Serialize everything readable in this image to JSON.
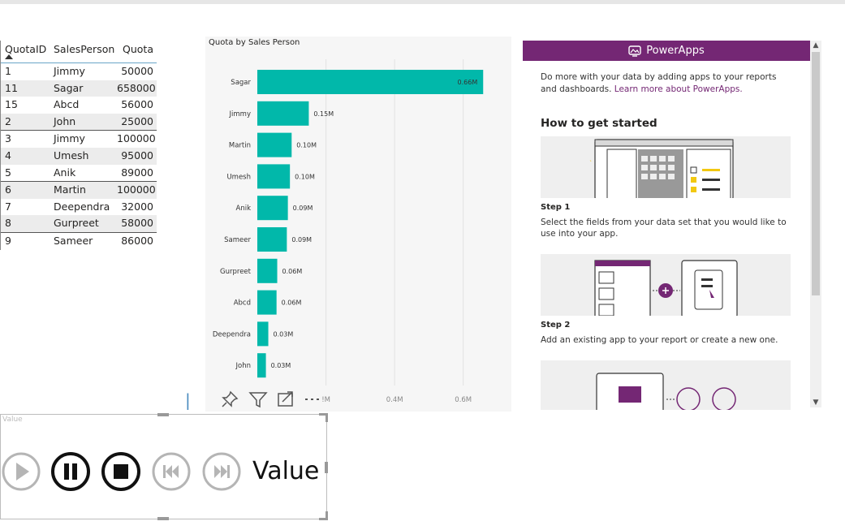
{
  "table": {
    "headers": [
      "QuotaID",
      "SalesPerson",
      "Quota"
    ],
    "rows": [
      [
        "1",
        "Jimmy",
        "50000"
      ],
      [
        "11",
        "Sagar",
        "658000"
      ],
      [
        "15",
        "Abcd",
        "56000"
      ],
      [
        "2",
        "John",
        "25000"
      ],
      [
        "3",
        "Jimmy",
        "100000"
      ],
      [
        "4",
        "Umesh",
        "95000"
      ],
      [
        "5",
        "Anik",
        "89000"
      ],
      [
        "6",
        "Martin",
        "100000"
      ],
      [
        "7",
        "Deependra",
        "32000"
      ],
      [
        "8",
        "Gurpreet",
        "58000"
      ],
      [
        "9",
        "Sameer",
        "86000"
      ]
    ]
  },
  "chart_data": {
    "type": "bar",
    "orientation": "horizontal",
    "title": "Quota by Sales Person",
    "categories": [
      "Sagar",
      "Jimmy",
      "Martin",
      "Umesh",
      "Anik",
      "Sameer",
      "Gurpreet",
      "Abcd",
      "Deependra",
      "John"
    ],
    "values": [
      658000,
      150000,
      100000,
      95000,
      89000,
      86000,
      58000,
      56000,
      32000,
      25000
    ],
    "data_labels": [
      "0.66M",
      "0.15M",
      "0.10M",
      "0.10M",
      "0.09M",
      "0.09M",
      "0.06M",
      "0.06M",
      "0.03M",
      "0.03M"
    ],
    "x_ticks": [
      0.2,
      0.4,
      0.6
    ],
    "x_tick_labels": [
      "!M",
      "0.4M",
      "0.6M"
    ],
    "xlim": [
      0,
      0.7
    ],
    "grid": true,
    "bar_color": "#01b8aa"
  },
  "visual_tools": {
    "pin": "pin-icon",
    "filter": "filter-icon",
    "focus": "focus-mode-icon",
    "more": "more-options-icon"
  },
  "player": {
    "label": "Value",
    "value_text": "Value",
    "buttons": [
      "play-icon",
      "pause-icon",
      "stop-icon",
      "previous-icon",
      "next-icon"
    ]
  },
  "powerapps": {
    "title": "PowerApps",
    "intro": "Do more with your data by adding apps to your reports and dashboards.",
    "link": "Learn more about PowerApps.",
    "heading": "How to get started",
    "steps": [
      {
        "title": "Step 1",
        "text": "Select the fields from your data set that you would like to use into your app."
      },
      {
        "title": "Step 2",
        "text": "Add an existing app to your report or create a new one."
      }
    ],
    "accent": "#742774"
  }
}
